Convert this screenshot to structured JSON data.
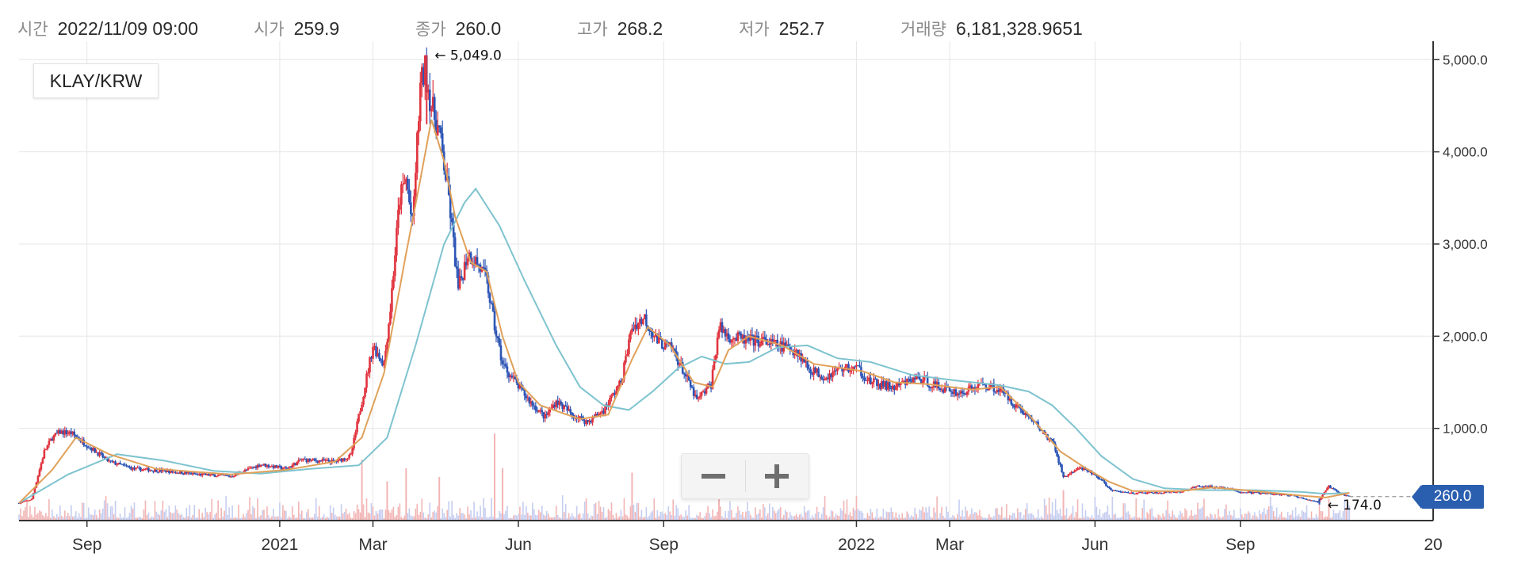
{
  "info": {
    "time_label": "시간",
    "time_value": "2022/11/09 09:00",
    "open_label": "시가",
    "open_value": "259.9",
    "close_label": "종가",
    "close_value": "260.0",
    "high_label": "고가",
    "high_value": "268.2",
    "low_label": "저가",
    "low_value": "252.7",
    "volume_label": "거래량",
    "volume_value": "6,181,328.9651"
  },
  "symbol": "KLAY/KRW",
  "zoom": {
    "minus_label": "−",
    "plus_label": "+"
  },
  "current_price_label": "260.0",
  "colors": {
    "up": "#e0343f",
    "down": "#2d55b5",
    "ma_short": "#e0a15a",
    "ma_long": "#7ec3cf",
    "grid": "#e6e6e6",
    "axis": "#333333",
    "tag": "#2a5fb0",
    "volume_up": "#f2b5b5",
    "volume_down": "#c5cdf0"
  },
  "chart_data": {
    "type": "candlestick",
    "y_axis": {
      "side": "right",
      "ylim": [
        0,
        5200
      ],
      "ticks": [
        1000,
        2000,
        3000,
        4000,
        5000
      ],
      "tick_labels": [
        "1,000.0",
        "2,000.0",
        "3,000.0",
        "4,000.0",
        "5,000.0"
      ]
    },
    "x_axis": {
      "range": [
        "2020-07-20",
        "2023-01-01"
      ],
      "ticks": [
        {
          "date": "2020-09-01",
          "label": "Sep"
        },
        {
          "date": "2021-01-01",
          "label": "2021"
        },
        {
          "date": "2021-03-01",
          "label": "Mar"
        },
        {
          "date": "2021-06-01",
          "label": "Jun"
        },
        {
          "date": "2021-09-01",
          "label": "Sep"
        },
        {
          "date": "2022-01-01",
          "label": "2022"
        },
        {
          "date": "2022-03-01",
          "label": "Mar"
        },
        {
          "date": "2022-06-01",
          "label": "Jun"
        },
        {
          "date": "2022-09-01",
          "label": "Sep"
        },
        {
          "date": "2023-01-01",
          "label": "20"
        }
      ]
    },
    "grid": true,
    "close_series": [
      [
        "2020-07-20",
        190
      ],
      [
        "2020-07-28",
        230
      ],
      [
        "2020-08-05",
        750
      ],
      [
        "2020-08-10",
        900
      ],
      [
        "2020-08-15",
        960
      ],
      [
        "2020-08-22",
        950
      ],
      [
        "2020-09-01",
        820
      ],
      [
        "2020-09-15",
        640
      ],
      [
        "2020-10-01",
        560
      ],
      [
        "2020-10-20",
        540
      ],
      [
        "2020-11-10",
        500
      ],
      [
        "2020-12-01",
        480
      ],
      [
        "2020-12-20",
        610
      ],
      [
        "2021-01-05",
        560
      ],
      [
        "2021-01-15",
        660
      ],
      [
        "2021-01-25",
        650
      ],
      [
        "2021-02-05",
        640
      ],
      [
        "2021-02-15",
        700
      ],
      [
        "2021-02-22",
        1300
      ],
      [
        "2021-03-01",
        1900
      ],
      [
        "2021-03-08",
        1700
      ],
      [
        "2021-03-12",
        2300
      ],
      [
        "2021-03-18",
        3500
      ],
      [
        "2021-03-22",
        3700
      ],
      [
        "2021-03-26",
        3200
      ],
      [
        "2021-03-31",
        4700
      ],
      [
        "2021-04-03",
        4900
      ],
      [
        "2021-04-07",
        4500
      ],
      [
        "2021-04-12",
        4200
      ],
      [
        "2021-04-18",
        3500
      ],
      [
        "2021-04-24",
        2500
      ],
      [
        "2021-04-30",
        2900
      ],
      [
        "2021-05-06",
        2800
      ],
      [
        "2021-05-12",
        2600
      ],
      [
        "2021-05-17",
        2100
      ],
      [
        "2021-05-22",
        1700
      ],
      [
        "2021-05-30",
        1500
      ],
      [
        "2021-06-08",
        1300
      ],
      [
        "2021-06-18",
        1120
      ],
      [
        "2021-06-25",
        1300
      ],
      [
        "2021-07-05",
        1150
      ],
      [
        "2021-07-15",
        1070
      ],
      [
        "2021-07-25",
        1200
      ],
      [
        "2021-08-05",
        1500
      ],
      [
        "2021-08-12",
        2100
      ],
      [
        "2021-08-20",
        2200
      ],
      [
        "2021-08-28",
        1950
      ],
      [
        "2021-09-07",
        1850
      ],
      [
        "2021-09-14",
        1600
      ],
      [
        "2021-09-22",
        1300
      ],
      [
        "2021-10-01",
        1480
      ],
      [
        "2021-10-06",
        2100
      ],
      [
        "2021-10-12",
        2000
      ],
      [
        "2021-10-24",
        1950
      ],
      [
        "2021-11-02",
        1950
      ],
      [
        "2021-11-12",
        1900
      ],
      [
        "2021-11-24",
        1850
      ],
      [
        "2021-12-02",
        1650
      ],
      [
        "2021-12-12",
        1560
      ],
      [
        "2021-12-22",
        1650
      ],
      [
        "2022-01-02",
        1650
      ],
      [
        "2022-01-10",
        1500
      ],
      [
        "2022-01-25",
        1440
      ],
      [
        "2022-02-08",
        1550
      ],
      [
        "2022-02-22",
        1450
      ],
      [
        "2022-03-08",
        1380
      ],
      [
        "2022-03-22",
        1480
      ],
      [
        "2022-04-02",
        1420
      ],
      [
        "2022-04-12",
        1250
      ],
      [
        "2022-04-24",
        1060
      ],
      [
        "2022-05-06",
        820
      ],
      [
        "2022-05-12",
        470
      ],
      [
        "2022-05-22",
        570
      ],
      [
        "2022-06-01",
        500
      ],
      [
        "2022-06-12",
        320
      ],
      [
        "2022-06-25",
        300
      ],
      [
        "2022-07-10",
        300
      ],
      [
        "2022-07-25",
        310
      ],
      [
        "2022-08-05",
        370
      ],
      [
        "2022-08-20",
        360
      ],
      [
        "2022-09-01",
        310
      ],
      [
        "2022-09-20",
        290
      ],
      [
        "2022-10-05",
        270
      ],
      [
        "2022-10-20",
        200
      ],
      [
        "2022-10-27",
        370
      ],
      [
        "2022-11-02",
        300
      ],
      [
        "2022-11-09",
        260
      ]
    ],
    "ma_short_series": [
      [
        "2020-07-20",
        190
      ],
      [
        "2020-08-10",
        550
      ],
      [
        "2020-08-25",
        900
      ],
      [
        "2020-09-15",
        720
      ],
      [
        "2020-10-15",
        560
      ],
      [
        "2020-12-01",
        500
      ],
      [
        "2021-01-05",
        550
      ],
      [
        "2021-02-05",
        640
      ],
      [
        "2021-02-22",
        900
      ],
      [
        "2021-03-08",
        1600
      ],
      [
        "2021-03-22",
        2900
      ],
      [
        "2021-03-31",
        3700
      ],
      [
        "2021-04-07",
        4350
      ],
      [
        "2021-04-15",
        3900
      ],
      [
        "2021-04-22",
        3300
      ],
      [
        "2021-05-02",
        2800
      ],
      [
        "2021-05-12",
        2700
      ],
      [
        "2021-05-22",
        2000
      ],
      [
        "2021-06-01",
        1500
      ],
      [
        "2021-06-15",
        1250
      ],
      [
        "2021-07-10",
        1100
      ],
      [
        "2021-07-28",
        1150
      ],
      [
        "2021-08-12",
        1750
      ],
      [
        "2021-08-22",
        2100
      ],
      [
        "2021-09-05",
        1900
      ],
      [
        "2021-09-20",
        1500
      ],
      [
        "2021-10-02",
        1450
      ],
      [
        "2021-10-12",
        1850
      ],
      [
        "2021-10-25",
        2000
      ],
      [
        "2021-11-15",
        1900
      ],
      [
        "2021-12-05",
        1700
      ],
      [
        "2022-01-05",
        1620
      ],
      [
        "2022-01-25",
        1500
      ],
      [
        "2022-02-15",
        1480
      ],
      [
        "2022-03-15",
        1420
      ],
      [
        "2022-04-02",
        1450
      ],
      [
        "2022-04-20",
        1150
      ],
      [
        "2022-05-10",
        750
      ],
      [
        "2022-05-25",
        580
      ],
      [
        "2022-06-10",
        420
      ],
      [
        "2022-06-25",
        320
      ],
      [
        "2022-07-25",
        320
      ],
      [
        "2022-08-15",
        360
      ],
      [
        "2022-09-10",
        320
      ],
      [
        "2022-10-10",
        270
      ],
      [
        "2022-10-25",
        250
      ],
      [
        "2022-11-09",
        300
      ]
    ],
    "ma_long_series": [
      [
        "2020-07-20",
        190
      ],
      [
        "2020-08-20",
        500
      ],
      [
        "2020-09-20",
        720
      ],
      [
        "2020-10-20",
        650
      ],
      [
        "2020-11-20",
        540
      ],
      [
        "2020-12-20",
        510
      ],
      [
        "2021-01-20",
        560
      ],
      [
        "2021-02-20",
        600
      ],
      [
        "2021-03-10",
        900
      ],
      [
        "2021-03-28",
        1900
      ],
      [
        "2021-04-15",
        3000
      ],
      [
        "2021-04-28",
        3450
      ],
      [
        "2021-05-05",
        3600
      ],
      [
        "2021-05-20",
        3200
      ],
      [
        "2021-06-05",
        2600
      ],
      [
        "2021-06-25",
        1900
      ],
      [
        "2021-07-10",
        1450
      ],
      [
        "2021-07-25",
        1250
      ],
      [
        "2021-08-10",
        1200
      ],
      [
        "2021-08-25",
        1400
      ],
      [
        "2021-09-10",
        1650
      ],
      [
        "2021-09-25",
        1780
      ],
      [
        "2021-10-10",
        1700
      ],
      [
        "2021-10-25",
        1720
      ],
      [
        "2021-11-12",
        1880
      ],
      [
        "2021-12-01",
        1900
      ],
      [
        "2021-12-20",
        1760
      ],
      [
        "2022-01-10",
        1720
      ],
      [
        "2022-02-05",
        1580
      ],
      [
        "2022-03-05",
        1520
      ],
      [
        "2022-04-01",
        1470
      ],
      [
        "2022-04-20",
        1400
      ],
      [
        "2022-05-05",
        1250
      ],
      [
        "2022-05-20",
        1000
      ],
      [
        "2022-06-05",
        700
      ],
      [
        "2022-06-25",
        450
      ],
      [
        "2022-07-15",
        350
      ],
      [
        "2022-08-10",
        330
      ],
      [
        "2022-09-10",
        330
      ],
      [
        "2022-10-10",
        310
      ],
      [
        "2022-10-25",
        290
      ],
      [
        "2022-11-09",
        300
      ]
    ],
    "annotations": [
      {
        "date": "2021-04-04",
        "value": 5049.0,
        "label": "← 5,049.0"
      },
      {
        "date": "2022-10-21",
        "value": 174.0,
        "label": "← 174.0"
      }
    ],
    "current_price": 260.0,
    "volume_spikes": [
      {
        "date": "2021-02-22",
        "rel": 0.7
      },
      {
        "date": "2021-03-10",
        "rel": 0.45
      },
      {
        "date": "2021-03-22",
        "rel": 0.6
      },
      {
        "date": "2021-04-12",
        "rel": 0.5
      },
      {
        "date": "2021-05-17",
        "rel": 1.0
      },
      {
        "date": "2021-05-22",
        "rel": 0.6
      },
      {
        "date": "2021-08-12",
        "rel": 0.55
      },
      {
        "date": "2021-10-06",
        "rel": 0.5
      },
      {
        "date": "2022-05-12",
        "rel": 0.35
      },
      {
        "date": "2022-10-27",
        "rel": 0.25
      }
    ]
  }
}
